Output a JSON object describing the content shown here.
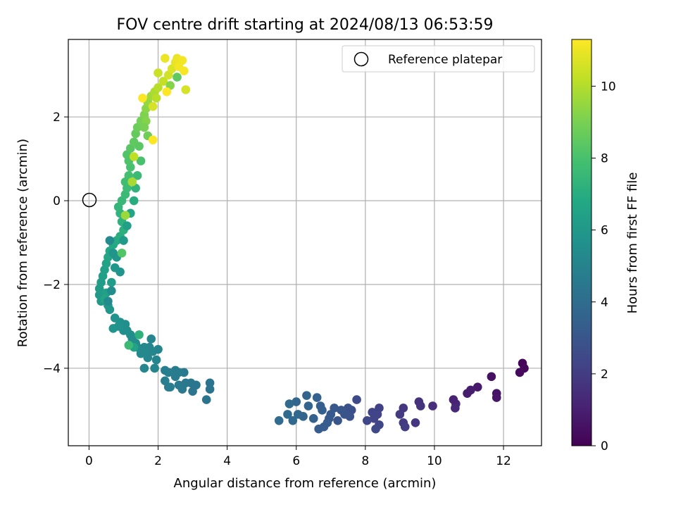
{
  "chart_data": {
    "type": "scatter",
    "title": "FOV centre drift starting at 2024/08/13 06:53:59",
    "xlabel": "Angular distance from reference (arcmin)",
    "ylabel": "Rotation from reference (arcmin)",
    "xlim": [
      -0.6,
      13.1
    ],
    "ylim": [
      -5.85,
      3.85
    ],
    "x_ticks": [
      0,
      2,
      4,
      6,
      8,
      10,
      12
    ],
    "x_tick_labels": [
      "0",
      "2",
      "4",
      "6",
      "8",
      "10",
      "12"
    ],
    "y_ticks": [
      -4,
      -2,
      0,
      2
    ],
    "y_tick_labels": [
      "−4",
      "−2",
      "0",
      "2"
    ],
    "grid": true,
    "colormap": "viridis",
    "colorbar": {
      "label": "Hours from first FF file",
      "range": [
        0,
        11.3
      ],
      "ticks": [
        0,
        2,
        4,
        6,
        8,
        10
      ],
      "tick_labels": [
        "0",
        "2",
        "4",
        "6",
        "8",
        "10"
      ]
    },
    "legend": {
      "position": "top-right",
      "entries": [
        {
          "label": "Reference platepar",
          "marker": "open-circle"
        }
      ]
    },
    "reference_point": {
      "x": 0,
      "y": 0
    },
    "series": [
      {
        "points": [
          [
            12.55,
            -3.88
          ],
          [
            12.6,
            -4.0
          ],
          [
            12.47,
            -4.1
          ],
          [
            11.8,
            -4.6
          ],
          [
            11.8,
            -4.7
          ],
          [
            11.65,
            -4.2
          ],
          [
            11.25,
            -4.45
          ],
          [
            11.05,
            -4.52
          ],
          [
            10.62,
            -4.85
          ],
          [
            10.55,
            -4.75
          ],
          [
            10.6,
            -4.95
          ],
          [
            9.55,
            -4.8
          ],
          [
            9.6,
            -4.9
          ],
          [
            9.45,
            -5.3
          ],
          [
            9.1,
            -4.95
          ],
          [
            9.1,
            -5.3
          ],
          [
            9.15,
            -5.4
          ],
          [
            9.0,
            -5.1
          ],
          [
            8.4,
            -4.95
          ],
          [
            8.35,
            -5.1
          ],
          [
            8.4,
            -5.35
          ],
          [
            8.25,
            -5.2
          ],
          [
            8.3,
            -5.45
          ],
          [
            8.2,
            -5.05
          ],
          [
            7.75,
            -4.75
          ],
          [
            7.6,
            -5.0
          ],
          [
            7.5,
            -4.95
          ],
          [
            7.4,
            -5.1
          ],
          [
            7.3,
            -5.0
          ],
          [
            7.2,
            -5.25
          ],
          [
            7.1,
            -4.95
          ],
          [
            7.0,
            -5.1
          ],
          [
            6.95,
            -5.2
          ],
          [
            6.9,
            -5.3
          ],
          [
            6.8,
            -5.4
          ],
          [
            6.7,
            -4.9
          ],
          [
            6.75,
            -5.0
          ],
          [
            6.6,
            -4.7
          ],
          [
            6.5,
            -5.2
          ],
          [
            6.3,
            -4.65
          ],
          [
            6.35,
            -4.9
          ],
          [
            6.2,
            -5.15
          ],
          [
            6.0,
            -4.8
          ],
          [
            6.05,
            -5.1
          ],
          [
            5.9,
            -5.25
          ],
          [
            5.8,
            -4.85
          ],
          [
            5.75,
            -5.1
          ],
          [
            5.5,
            -5.25
          ],
          [
            6.65,
            -5.45
          ],
          [
            7.55,
            -5.15
          ],
          [
            8.05,
            -5.25
          ],
          [
            9.95,
            -4.9
          ],
          [
            10.95,
            -4.6
          ],
          [
            3.5,
            -4.35
          ],
          [
            3.5,
            -4.5
          ],
          [
            3.4,
            -4.75
          ],
          [
            3.1,
            -4.4
          ],
          [
            2.95,
            -4.35
          ],
          [
            3.0,
            -4.55
          ],
          [
            2.8,
            -4.35
          ],
          [
            2.7,
            -4.5
          ],
          [
            2.6,
            -4.4
          ],
          [
            2.5,
            -4.2
          ],
          [
            2.3,
            -4.45
          ],
          [
            2.2,
            -4.3
          ],
          [
            2.3,
            -4.1
          ],
          [
            2.2,
            -4.05
          ],
          [
            2.75,
            -4.1
          ],
          [
            2.6,
            -4.1
          ],
          [
            2.5,
            -4.05
          ],
          [
            2.35,
            -4.45
          ],
          [
            2.0,
            -3.55
          ],
          [
            1.95,
            -3.8
          ],
          [
            1.85,
            -3.6
          ],
          [
            1.8,
            -3.3
          ],
          [
            1.75,
            -3.5
          ],
          [
            1.7,
            -3.75
          ],
          [
            1.65,
            -3.6
          ],
          [
            1.6,
            -3.5
          ],
          [
            1.6,
            -4.0
          ],
          [
            1.9,
            -4.0
          ],
          [
            1.5,
            -3.65
          ],
          [
            1.4,
            -3.5
          ],
          [
            1.35,
            -3.4
          ],
          [
            1.25,
            -3.3
          ],
          [
            1.2,
            -3.2
          ],
          [
            1.1,
            -3.1
          ],
          [
            1.05,
            -2.95
          ],
          [
            1.0,
            -3.1
          ],
          [
            0.9,
            -2.9
          ],
          [
            0.85,
            -3.0
          ],
          [
            0.75,
            -2.8
          ],
          [
            0.7,
            -3.05
          ],
          [
            0.6,
            -2.6
          ],
          [
            0.55,
            -2.5
          ],
          [
            0.5,
            -2.4
          ],
          [
            0.4,
            -2.3
          ],
          [
            0.35,
            -2.4
          ],
          [
            0.3,
            -2.25
          ],
          [
            0.3,
            -2.1
          ],
          [
            0.35,
            -1.95
          ],
          [
            0.4,
            -1.8
          ],
          [
            0.45,
            -1.65
          ],
          [
            0.5,
            -1.5
          ],
          [
            0.55,
            -1.35
          ],
          [
            0.6,
            -1.2
          ],
          [
            0.7,
            -1.05
          ],
          [
            0.8,
            -0.95
          ],
          [
            0.9,
            -0.85
          ],
          [
            1.0,
            -0.7
          ],
          [
            0.95,
            -0.5
          ],
          [
            0.9,
            -0.3
          ],
          [
            0.85,
            -0.15
          ],
          [
            0.95,
            0.0
          ],
          [
            1.05,
            0.15
          ],
          [
            1.1,
            0.3
          ],
          [
            1.05,
            0.45
          ],
          [
            1.15,
            0.6
          ],
          [
            1.2,
            0.8
          ],
          [
            1.15,
            0.95
          ],
          [
            1.1,
            1.1
          ],
          [
            1.2,
            1.25
          ],
          [
            1.3,
            1.4
          ],
          [
            1.35,
            1.6
          ],
          [
            1.4,
            1.75
          ],
          [
            1.5,
            1.9
          ],
          [
            1.6,
            2.05
          ],
          [
            1.65,
            2.2
          ],
          [
            1.7,
            2.35
          ],
          [
            1.8,
            2.5
          ],
          [
            1.9,
            2.6
          ],
          [
            2.0,
            2.7
          ],
          [
            2.15,
            2.85
          ],
          [
            2.3,
            3.0
          ],
          [
            2.4,
            3.15
          ],
          [
            2.5,
            3.3
          ],
          [
            2.55,
            3.4
          ],
          [
            2.7,
            3.35
          ],
          [
            2.75,
            3.1
          ],
          [
            2.6,
            3.2
          ],
          [
            2.8,
            2.65
          ],
          [
            2.2,
            3.4
          ],
          [
            2.0,
            3.05
          ],
          [
            1.65,
            1.9
          ],
          [
            1.6,
            1.75
          ],
          [
            1.7,
            1.55
          ],
          [
            1.45,
            1.3
          ],
          [
            1.5,
            0.95
          ],
          [
            1.4,
            0.6
          ],
          [
            1.35,
            0.3
          ],
          [
            1.3,
            0.0
          ],
          [
            1.2,
            -0.3
          ],
          [
            1.1,
            -0.6
          ],
          [
            1.0,
            -0.95
          ],
          [
            0.8,
            -1.35
          ],
          [
            0.75,
            -1.6
          ],
          [
            0.65,
            -1.95
          ],
          [
            0.5,
            -2.2
          ],
          [
            0.45,
            -2.35
          ],
          [
            0.9,
            -1.7
          ],
          [
            0.7,
            -1.25
          ],
          [
            0.6,
            -0.95
          ],
          [
            0.65,
            -2.15
          ],
          [
            0.55,
            -2.4
          ],
          [
            1.3,
            -3.5
          ],
          [
            1.45,
            -3.2
          ],
          [
            1.15,
            -3.45
          ],
          [
            0.95,
            -1.25
          ],
          [
            1.05,
            -0.35
          ],
          [
            1.25,
            0.45
          ],
          [
            1.3,
            1.05
          ],
          [
            1.85,
            2.25
          ],
          [
            1.95,
            2.45
          ],
          [
            2.35,
            2.75
          ],
          [
            2.55,
            2.95
          ],
          [
            2.25,
            2.6
          ],
          [
            1.55,
            2.45
          ],
          [
            1.85,
            1.45
          ]
        ],
        "hours": [
          0.1,
          0.2,
          0.3,
          0.6,
          0.65,
          0.5,
          0.8,
          0.9,
          1.2,
          1.1,
          1.3,
          1.6,
          1.7,
          1.8,
          1.8,
          1.9,
          2.0,
          1.9,
          2.2,
          2.3,
          2.4,
          2.3,
          2.5,
          2.3,
          2.6,
          2.7,
          2.8,
          2.9,
          3.0,
          3.0,
          3.1,
          3.2,
          3.2,
          3.3,
          3.3,
          3.4,
          3.4,
          3.5,
          3.5,
          3.6,
          3.6,
          3.7,
          3.7,
          3.8,
          3.8,
          3.9,
          3.9,
          4.0,
          3.3,
          2.9,
          2.4,
          1.5,
          0.9,
          4.3,
          4.3,
          4.35,
          4.4,
          4.45,
          4.45,
          4.5,
          4.55,
          4.6,
          4.7,
          4.7,
          4.75,
          4.8,
          4.8,
          4.6,
          4.65,
          4.7,
          4.75,
          5.1,
          5.1,
          5.15,
          5.15,
          5.2,
          5.2,
          5.25,
          5.25,
          5.2,
          5.1,
          5.3,
          5.35,
          5.4,
          5.45,
          5.5,
          5.55,
          5.6,
          5.6,
          5.65,
          5.7,
          5.7,
          5.8,
          5.9,
          5.95,
          6.0,
          6.0,
          6.05,
          6.1,
          6.15,
          6.2,
          6.3,
          6.4,
          6.5,
          6.6,
          6.7,
          6.8,
          6.9,
          7.0,
          7.1,
          7.2,
          7.3,
          7.4,
          7.5,
          7.6,
          7.7,
          7.8,
          7.9,
          8.0,
          8.1,
          8.2,
          8.35,
          8.5,
          8.6,
          8.75,
          8.9,
          9.1,
          9.3,
          9.5,
          9.7,
          9.9,
          10.1,
          10.3,
          10.5,
          10.7,
          10.9,
          11.0,
          11.1,
          11.2,
          11.1,
          10.6,
          11.0,
          10.4,
          9.2,
          9.0,
          8.8,
          8.4,
          8.0,
          7.6,
          7.3,
          7.0,
          6.7,
          6.4,
          6.1,
          5.9,
          5.9,
          6.2,
          6.4,
          6.6,
          5.85,
          5.8,
          5.35,
          5.45,
          5.35,
          6.5,
          7.2,
          7.6,
          8.2,
          9.6,
          9.8,
          10.2,
          10.6,
          10.1,
          9.2,
          8.5
        ]
      }
    ]
  }
}
